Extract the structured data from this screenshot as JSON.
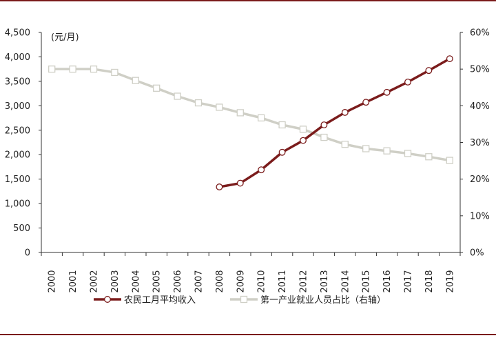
{
  "colors": {
    "series1": "#7b1c1c",
    "series2": "#cfcfc6",
    "axis": "#333333",
    "frame": "#7a1a1a"
  },
  "chart_data": {
    "type": "line",
    "x": [
      "2000",
      "2001",
      "2002",
      "2003",
      "2004",
      "2005",
      "2006",
      "2007",
      "2008",
      "2009",
      "2010",
      "2011",
      "2012",
      "2013",
      "2014",
      "2015",
      "2016",
      "2017",
      "2018",
      "2019"
    ],
    "unit_label": "(元/月)",
    "y_left": {
      "range": [
        0,
        4500
      ],
      "ticks": [
        0,
        500,
        1000,
        1500,
        2000,
        2500,
        3000,
        3500,
        4000,
        4500
      ],
      "tick_labels": [
        "0",
        "500",
        "1,000",
        "1,500",
        "2,000",
        "2,500",
        "3,000",
        "3,500",
        "4,000",
        "4,500"
      ]
    },
    "y_right": {
      "range": [
        0,
        60
      ],
      "ticks": [
        0,
        10,
        20,
        30,
        40,
        50,
        60
      ],
      "tick_labels": [
        "0%",
        "10%",
        "20%",
        "30%",
        "40%",
        "50%",
        "60%"
      ]
    },
    "series": [
      {
        "name": "农民工月平均收入",
        "axis": "left",
        "marker": "circle",
        "values": [
          null,
          null,
          null,
          null,
          null,
          null,
          null,
          null,
          1340,
          1417,
          1690,
          2049,
          2290,
          2609,
          2864,
          3072,
          3275,
          3485,
          3721,
          3962
        ]
      },
      {
        "name": "第一产业就业人员占比（右轴）",
        "axis": "right",
        "marker": "square",
        "values": [
          50.0,
          50.0,
          50.0,
          49.1,
          46.9,
          44.8,
          42.6,
          40.8,
          39.6,
          38.1,
          36.7,
          34.8,
          33.6,
          31.4,
          29.5,
          28.3,
          27.7,
          27.0,
          26.1,
          25.1
        ]
      }
    ],
    "legend_position": "bottom",
    "grid": false
  }
}
